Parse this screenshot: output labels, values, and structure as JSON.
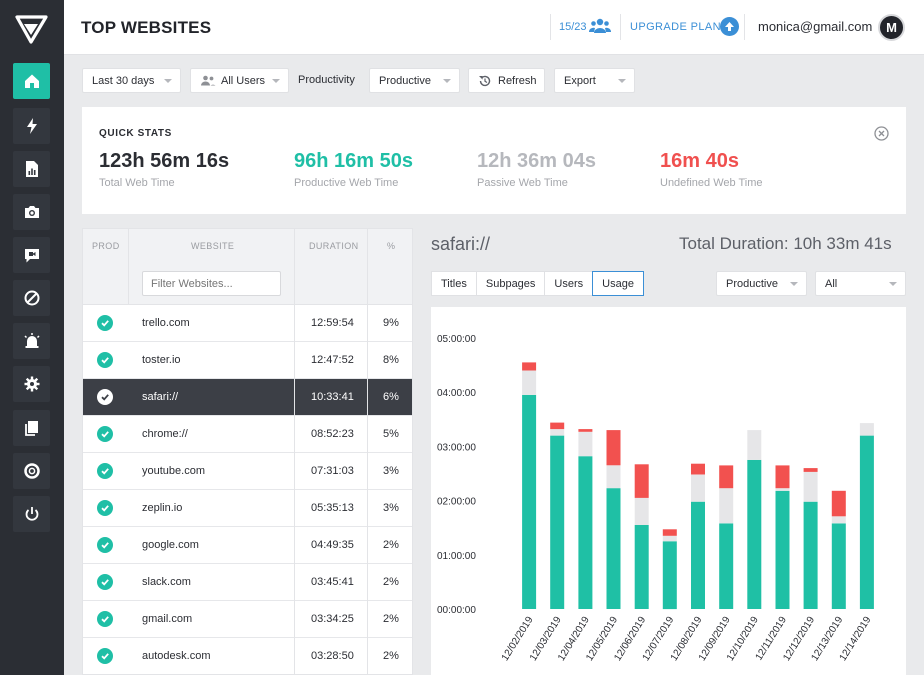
{
  "header": {
    "title": "TOP WEBSITES",
    "seats": "15/23",
    "upgrade_label": "UPGRADE PLAN",
    "user_email": "monica@gmail.com",
    "avatar_initial": "M"
  },
  "sidebar": {
    "items": [
      {
        "name": "home-icon",
        "active": true
      },
      {
        "name": "lightning-icon",
        "active": false
      },
      {
        "name": "report-icon",
        "active": false
      },
      {
        "name": "camera-icon",
        "active": false
      },
      {
        "name": "video-icon",
        "active": false
      },
      {
        "name": "block-icon",
        "active": false
      },
      {
        "name": "alarm-icon",
        "active": false
      },
      {
        "name": "gear-icon",
        "active": false
      },
      {
        "name": "book-icon",
        "active": false
      },
      {
        "name": "support-icon",
        "active": false
      },
      {
        "name": "power-icon",
        "active": false
      }
    ]
  },
  "toolbar": {
    "date_range": "Last 30 days",
    "users": "All Users",
    "productivity_label": "Productivity",
    "productivity_value": "Productive",
    "refresh_label": "Refresh",
    "export_label": "Export"
  },
  "quick_stats": {
    "title": "QUICK STATS",
    "items": [
      {
        "value": "123h 56m 16s",
        "label": "Total Web Time",
        "color": "#2b2d33"
      },
      {
        "value": "96h 16m 50s",
        "label": "Productive Web Time",
        "color": "#1fbfa6"
      },
      {
        "value": "12h 36m 04s",
        "label": "Passive Web Time",
        "color": "#b6b8bd"
      },
      {
        "value": "16m 40s",
        "label": "Undefined Web Time",
        "color": "#f0504f"
      }
    ]
  },
  "table": {
    "headers": {
      "prod": "PROD",
      "website": "WEBSITE",
      "duration": "DURATION",
      "percent": "%"
    },
    "filter_placeholder": "Filter Websites...",
    "rows": [
      {
        "site": "trello.com",
        "duration": "12:59:54",
        "percent": "9%",
        "selected": false
      },
      {
        "site": "toster.io",
        "duration": "12:47:52",
        "percent": "8%",
        "selected": false
      },
      {
        "site": "safari://",
        "duration": "10:33:41",
        "percent": "6%",
        "selected": true
      },
      {
        "site": "chrome://",
        "duration": "08:52:23",
        "percent": "5%",
        "selected": false
      },
      {
        "site": "youtube.com",
        "duration": "07:31:03",
        "percent": "3%",
        "selected": false
      },
      {
        "site": "zeplin.io",
        "duration": "05:35:13",
        "percent": "3%",
        "selected": false
      },
      {
        "site": "google.com",
        "duration": "04:49:35",
        "percent": "2%",
        "selected": false
      },
      {
        "site": "slack.com",
        "duration": "03:45:41",
        "percent": "2%",
        "selected": false
      },
      {
        "site": "gmail.com",
        "duration": "03:34:25",
        "percent": "2%",
        "selected": false
      },
      {
        "site": "autodesk.com",
        "duration": "03:28:50",
        "percent": "2%",
        "selected": false
      }
    ]
  },
  "detail": {
    "title": "safari://",
    "total": "Total Duration: 10h 33m 41s",
    "tabs": [
      {
        "label": "Titles",
        "active": false
      },
      {
        "label": "Subpages",
        "active": false
      },
      {
        "label": "Users",
        "active": false
      },
      {
        "label": "Usage",
        "active": true
      }
    ],
    "filter_productivity": "Productive",
    "filter_scope": "All"
  },
  "chart_data": {
    "type": "bar",
    "stacked": true,
    "categories": [
      "12/02/2019",
      "12/03/2019",
      "12/04/2019",
      "12/05/2019",
      "12/06/2019",
      "12/07/2019",
      "12/08/2019",
      "12/09/2019",
      "12/10/2019",
      "12/11/2019",
      "12/12/2019",
      "12/13/2019",
      "12/14/2019"
    ],
    "y_ticks": [
      "00:00:00",
      "01:00:00",
      "02:00:00",
      "03:00:00",
      "04:00:00",
      "05:00:00"
    ],
    "ylim": [
      0,
      5
    ],
    "series": [
      {
        "key": "productive",
        "color": "#1fc0a5",
        "values": [
          3.95,
          3.2,
          2.82,
          2.23,
          1.55,
          1.25,
          1.98,
          1.58,
          2.75,
          2.18,
          1.98,
          1.58,
          3.2
        ]
      },
      {
        "key": "passive",
        "color": "#e6e6e8",
        "values": [
          0.45,
          0.12,
          0.45,
          0.42,
          0.5,
          0.1,
          0.5,
          0.65,
          0.55,
          0.05,
          0.55,
          0.13,
          0.23
        ]
      },
      {
        "key": "undefined",
        "color": "#f2514f",
        "values": [
          0.15,
          0.12,
          0.05,
          0.65,
          0.62,
          0.12,
          0.2,
          0.42,
          0,
          0.42,
          0.07,
          0.47,
          0
        ]
      }
    ]
  }
}
